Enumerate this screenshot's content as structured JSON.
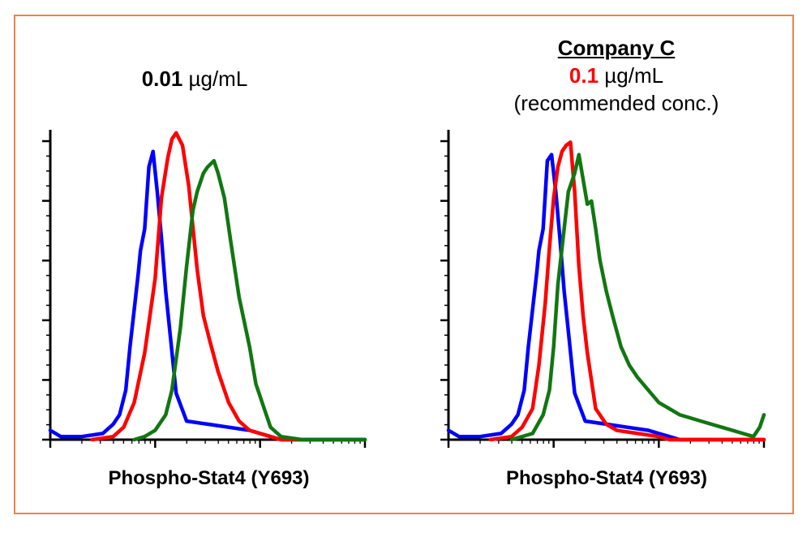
{
  "colors": {
    "frame": "#e8844a",
    "blue": "#0000ff",
    "red": "#ff0000",
    "green": "#117711",
    "highlight": "#ff0000"
  },
  "left_panel": {
    "conc_value": "0.01",
    "conc_unit": " µg/mL"
  },
  "right_panel": {
    "company": "Company C",
    "conc_value": "0.1",
    "conc_unit": " µg/mL",
    "note": "(recommended conc.)"
  },
  "chart_data": [
    {
      "type": "line",
      "xlabel": "Phospho-Stat4 (Y693)",
      "ylabel": "",
      "x_scale": "log",
      "xlim": [
        0,
        1.5
      ],
      "ylim": [
        0,
        100
      ],
      "grid": false,
      "series": [
        {
          "color": "blue",
          "x": [
            0.0,
            0.05,
            0.15,
            0.25,
            0.3,
            0.33,
            0.36,
            0.38,
            0.4,
            0.42,
            0.43,
            0.45,
            0.47,
            0.49,
            0.51,
            0.53,
            0.55,
            0.57,
            0.6,
            0.65,
            0.75,
            0.85,
            0.95,
            1.0,
            1.05,
            1.1,
            1.5
          ],
          "y": [
            3,
            1,
            1,
            2,
            5,
            8,
            16,
            30,
            42,
            54,
            61,
            68,
            88,
            93,
            80,
            65,
            48,
            35,
            15,
            6,
            5,
            4,
            3,
            2,
            1,
            0,
            0
          ]
        },
        {
          "color": "red",
          "x": [
            0.2,
            0.3,
            0.35,
            0.4,
            0.45,
            0.5,
            0.53,
            0.56,
            0.58,
            0.6,
            0.63,
            0.66,
            0.7,
            0.73,
            0.76,
            0.8,
            0.85,
            0.9,
            0.95,
            1.0,
            1.05,
            1.1,
            1.5
          ],
          "y": [
            0,
            1,
            4,
            12,
            28,
            52,
            78,
            91,
            97,
            99,
            95,
            82,
            55,
            40,
            32,
            22,
            12,
            6,
            3,
            2,
            1,
            0,
            0
          ]
        },
        {
          "color": "green",
          "x": [
            0.4,
            0.45,
            0.5,
            0.55,
            0.58,
            0.62,
            0.65,
            0.68,
            0.7,
            0.73,
            0.75,
            0.78,
            0.8,
            0.83,
            0.86,
            0.9,
            0.95,
            0.98,
            1.02,
            1.05,
            1.1,
            1.2,
            1.5
          ],
          "y": [
            0,
            1,
            3,
            8,
            16,
            36,
            56,
            74,
            80,
            86,
            88,
            90,
            86,
            78,
            64,
            46,
            30,
            18,
            10,
            4,
            1,
            0,
            0
          ]
        }
      ]
    },
    {
      "type": "line",
      "xlabel": "Phospho-Stat4 (Y693)",
      "ylabel": "",
      "x_scale": "log",
      "xlim": [
        0,
        1.5
      ],
      "ylim": [
        0,
        100
      ],
      "grid": false,
      "series": [
        {
          "color": "blue",
          "x": [
            0.0,
            0.05,
            0.15,
            0.25,
            0.3,
            0.33,
            0.36,
            0.38,
            0.4,
            0.42,
            0.43,
            0.45,
            0.47,
            0.49,
            0.51,
            0.53,
            0.55,
            0.57,
            0.6,
            0.65,
            0.75,
            0.85,
            0.95,
            1.0,
            1.05,
            1.1,
            1.5
          ],
          "y": [
            3,
            1,
            1,
            2,
            5,
            8,
            16,
            30,
            42,
            54,
            61,
            68,
            90,
            92,
            80,
            65,
            48,
            35,
            15,
            6,
            5,
            4,
            3,
            2,
            1,
            0,
            0
          ]
        },
        {
          "color": "red",
          "x": [
            0.2,
            0.3,
            0.35,
            0.4,
            0.43,
            0.46,
            0.48,
            0.5,
            0.52,
            0.54,
            0.56,
            0.58,
            0.6,
            0.62,
            0.64,
            0.66,
            0.7,
            0.75,
            0.8,
            0.9,
            1.0,
            1.05,
            1.5
          ],
          "y": [
            0,
            1,
            4,
            10,
            24,
            44,
            62,
            78,
            88,
            93,
            95,
            96,
            80,
            56,
            40,
            28,
            10,
            5,
            3,
            2,
            1,
            0,
            0
          ]
        },
        {
          "color": "green",
          "x": [
            0.3,
            0.4,
            0.45,
            0.48,
            0.5,
            0.52,
            0.55,
            0.57,
            0.6,
            0.62,
            0.64,
            0.66,
            0.68,
            0.7,
            0.72,
            0.75,
            0.78,
            0.82,
            0.86,
            0.9,
            0.95,
            1.0,
            1.1,
            1.2,
            1.3,
            1.4,
            1.45,
            1.48,
            1.5
          ],
          "y": [
            0,
            2,
            8,
            16,
            30,
            50,
            68,
            80,
            86,
            92,
            84,
            76,
            77,
            68,
            58,
            48,
            40,
            30,
            24,
            20,
            16,
            12,
            8,
            6,
            4,
            2,
            1,
            4,
            8
          ]
        }
      ]
    }
  ]
}
